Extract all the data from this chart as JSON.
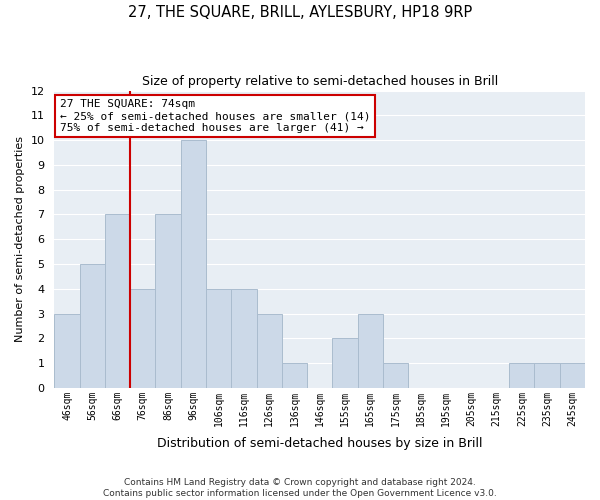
{
  "title": "27, THE SQUARE, BRILL, AYLESBURY, HP18 9RP",
  "subtitle": "Size of property relative to semi-detached houses in Brill",
  "xlabel": "Distribution of semi-detached houses by size in Brill",
  "ylabel": "Number of semi-detached properties",
  "bins": [
    "46sqm",
    "56sqm",
    "66sqm",
    "76sqm",
    "86sqm",
    "96sqm",
    "106sqm",
    "116sqm",
    "126sqm",
    "136sqm",
    "146sqm",
    "155sqm",
    "165sqm",
    "175sqm",
    "185sqm",
    "195sqm",
    "205sqm",
    "215sqm",
    "225sqm",
    "235sqm",
    "245sqm"
  ],
  "counts": [
    3,
    5,
    7,
    4,
    7,
    10,
    4,
    4,
    3,
    1,
    0,
    2,
    3,
    1,
    0,
    0,
    0,
    0,
    1,
    1,
    1
  ],
  "bar_color": "#ccd9e8",
  "bar_edge_color": "#aabcce",
  "vline_color": "#cc0000",
  "annotation_title": "27 THE SQUARE: 74sqm",
  "annotation_line1": "← 25% of semi-detached houses are smaller (14)",
  "annotation_line2": "75% of semi-detached houses are larger (41) →",
  "annotation_box_color": "#ffffff",
  "annotation_box_edge": "#cc0000",
  "ylim": [
    0,
    12
  ],
  "yticks": [
    0,
    1,
    2,
    3,
    4,
    5,
    6,
    7,
    8,
    9,
    10,
    11,
    12
  ],
  "plot_bg_color": "#e8eef4",
  "grid_color": "#ffffff",
  "footer_line1": "Contains HM Land Registry data © Crown copyright and database right 2024.",
  "footer_line2": "Contains public sector information licensed under the Open Government Licence v3.0."
}
